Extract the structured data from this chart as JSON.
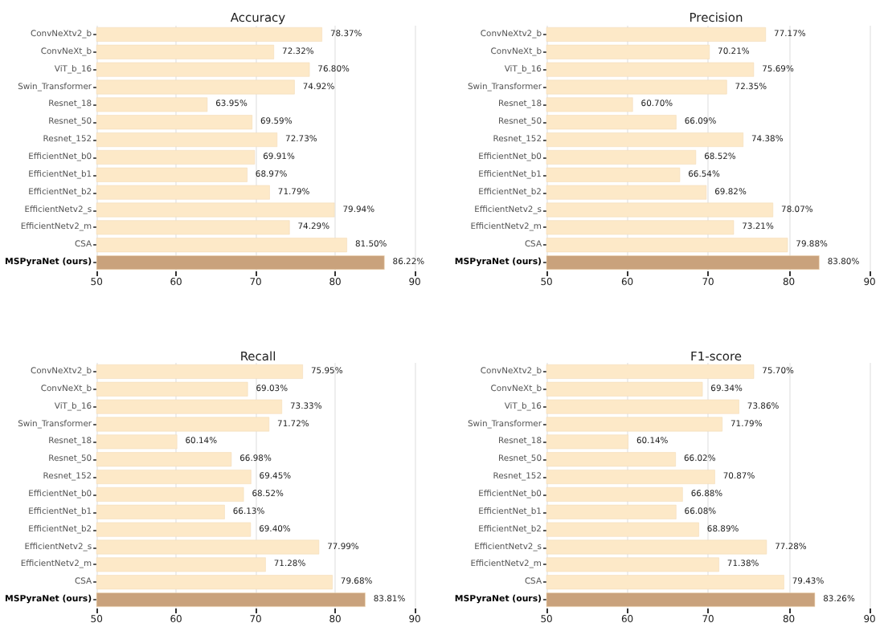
{
  "chart_data": [
    {
      "type": "bar",
      "orientation": "horizontal",
      "title": "Accuracy",
      "categories": [
        "ConvNeXtv2_b",
        "ConvNeXt_b",
        "ViT_b_16",
        "Swin_Transformer",
        "Resnet_18",
        "Resnet_50",
        "Resnet_152",
        "EfficientNet_b0",
        "EfficientNet_b1",
        "EfficientNet_b2",
        "EfficientNetv2_s",
        "EfficientNetv2_m",
        "CSA",
        "MSPyraNet (ours)"
      ],
      "values": [
        78.37,
        72.32,
        76.8,
        74.92,
        63.95,
        69.59,
        72.73,
        69.91,
        68.97,
        71.79,
        79.94,
        74.29,
        81.5,
        86.22
      ],
      "value_labels": [
        "78.37%",
        "72.32%",
        "76.80%",
        "74.92%",
        "63.95%",
        "69.59%",
        "72.73%",
        "69.91%",
        "68.97%",
        "71.79%",
        "79.94%",
        "74.29%",
        "81.50%",
        "86.22%"
      ],
      "colors": [
        "#fde9c8",
        "#fde9c8",
        "#fde9c8",
        "#fde9c8",
        "#fde9c8",
        "#fde9c8",
        "#fde9c8",
        "#fde9c8",
        "#fde9c8",
        "#fde9c8",
        "#fde9c8",
        "#fde9c8",
        "#fde9c8",
        "#c9a27c"
      ],
      "xlim": [
        50,
        90
      ],
      "xticks": [
        50,
        60,
        70,
        80,
        90
      ],
      "grid": "x"
    },
    {
      "type": "bar",
      "orientation": "horizontal",
      "title": "Precision",
      "categories": [
        "ConvNeXtv2_b",
        "ConvNeXt_b",
        "ViT_b_16",
        "Swin_Transformer",
        "Resnet_18",
        "Resnet_50",
        "Resnet_152",
        "EfficientNet_b0",
        "EfficientNet_b1",
        "EfficientNet_b2",
        "EfficientNetv2_s",
        "EfficientNetv2_m",
        "CSA",
        "MSPyraNet (ours)"
      ],
      "values": [
        77.17,
        70.21,
        75.69,
        72.35,
        60.7,
        66.09,
        74.38,
        68.52,
        66.54,
        69.82,
        78.07,
        73.21,
        79.88,
        83.8
      ],
      "value_labels": [
        "77.17%",
        "70.21%",
        "75.69%",
        "72.35%",
        "60.70%",
        "66.09%",
        "74.38%",
        "68.52%",
        "66.54%",
        "69.82%",
        "78.07%",
        "73.21%",
        "79.88%",
        "83.80%"
      ],
      "colors": [
        "#fde9c8",
        "#fde9c8",
        "#fde9c8",
        "#fde9c8",
        "#fde9c8",
        "#fde9c8",
        "#fde9c8",
        "#fde9c8",
        "#fde9c8",
        "#fde9c8",
        "#fde9c8",
        "#fde9c8",
        "#fde9c8",
        "#c9a27c"
      ],
      "xlim": [
        50,
        90
      ],
      "xticks": [
        50,
        60,
        70,
        80,
        90
      ],
      "grid": "x"
    },
    {
      "type": "bar",
      "orientation": "horizontal",
      "title": "Recall",
      "categories": [
        "ConvNeXtv2_b",
        "ConvNeXt_b",
        "ViT_b_16",
        "Swin_Transformer",
        "Resnet_18",
        "Resnet_50",
        "Resnet_152",
        "EfficientNet_b0",
        "EfficientNet_b1",
        "EfficientNet_b2",
        "EfficientNetv2_s",
        "EfficientNetv2_m",
        "CSA",
        "MSPyraNet (ours)"
      ],
      "values": [
        75.95,
        69.03,
        73.33,
        71.72,
        60.14,
        66.98,
        69.45,
        68.52,
        66.13,
        69.4,
        77.99,
        71.28,
        79.68,
        83.81
      ],
      "value_labels": [
        "75.95%",
        "69.03%",
        "73.33%",
        "71.72%",
        "60.14%",
        "66.98%",
        "69.45%",
        "68.52%",
        "66.13%",
        "69.40%",
        "77.99%",
        "71.28%",
        "79.68%",
        "83.81%"
      ],
      "colors": [
        "#fde9c8",
        "#fde9c8",
        "#fde9c8",
        "#fde9c8",
        "#fde9c8",
        "#fde9c8",
        "#fde9c8",
        "#fde9c8",
        "#fde9c8",
        "#fde9c8",
        "#fde9c8",
        "#fde9c8",
        "#fde9c8",
        "#c9a27c"
      ],
      "xlim": [
        50,
        90
      ],
      "xticks": [
        50,
        60,
        70,
        80,
        90
      ],
      "grid": "x"
    },
    {
      "type": "bar",
      "orientation": "horizontal",
      "title": "F1-score",
      "categories": [
        "ConvNeXtv2_b",
        "ConvNeXt_b",
        "ViT_b_16",
        "Swin_Transformer",
        "Resnet_18",
        "Resnet_50",
        "Resnet_152",
        "EfficientNet_b0",
        "EfficientNet_b1",
        "EfficientNet_b2",
        "EfficientNetv2_s",
        "EfficientNetv2_m",
        "CSA",
        "MSPyraNet (ours)"
      ],
      "values": [
        75.7,
        69.34,
        73.86,
        71.79,
        60.14,
        66.02,
        70.87,
        66.88,
        66.08,
        68.89,
        77.28,
        71.38,
        79.43,
        83.26
      ],
      "value_labels": [
        "75.70%",
        "69.34%",
        "73.86%",
        "71.79%",
        "60.14%",
        "66.02%",
        "70.87%",
        "66.88%",
        "66.08%",
        "68.89%",
        "77.28%",
        "71.38%",
        "79.43%",
        "83.26%"
      ],
      "colors": [
        "#fde9c8",
        "#fde9c8",
        "#fde9c8",
        "#fde9c8",
        "#fde9c8",
        "#fde9c8",
        "#fde9c8",
        "#fde9c8",
        "#fde9c8",
        "#fde9c8",
        "#fde9c8",
        "#fde9c8",
        "#fde9c8",
        "#c9a27c"
      ],
      "xlim": [
        50,
        90
      ],
      "xticks": [
        50,
        60,
        70,
        80,
        90
      ],
      "grid": "x"
    }
  ]
}
